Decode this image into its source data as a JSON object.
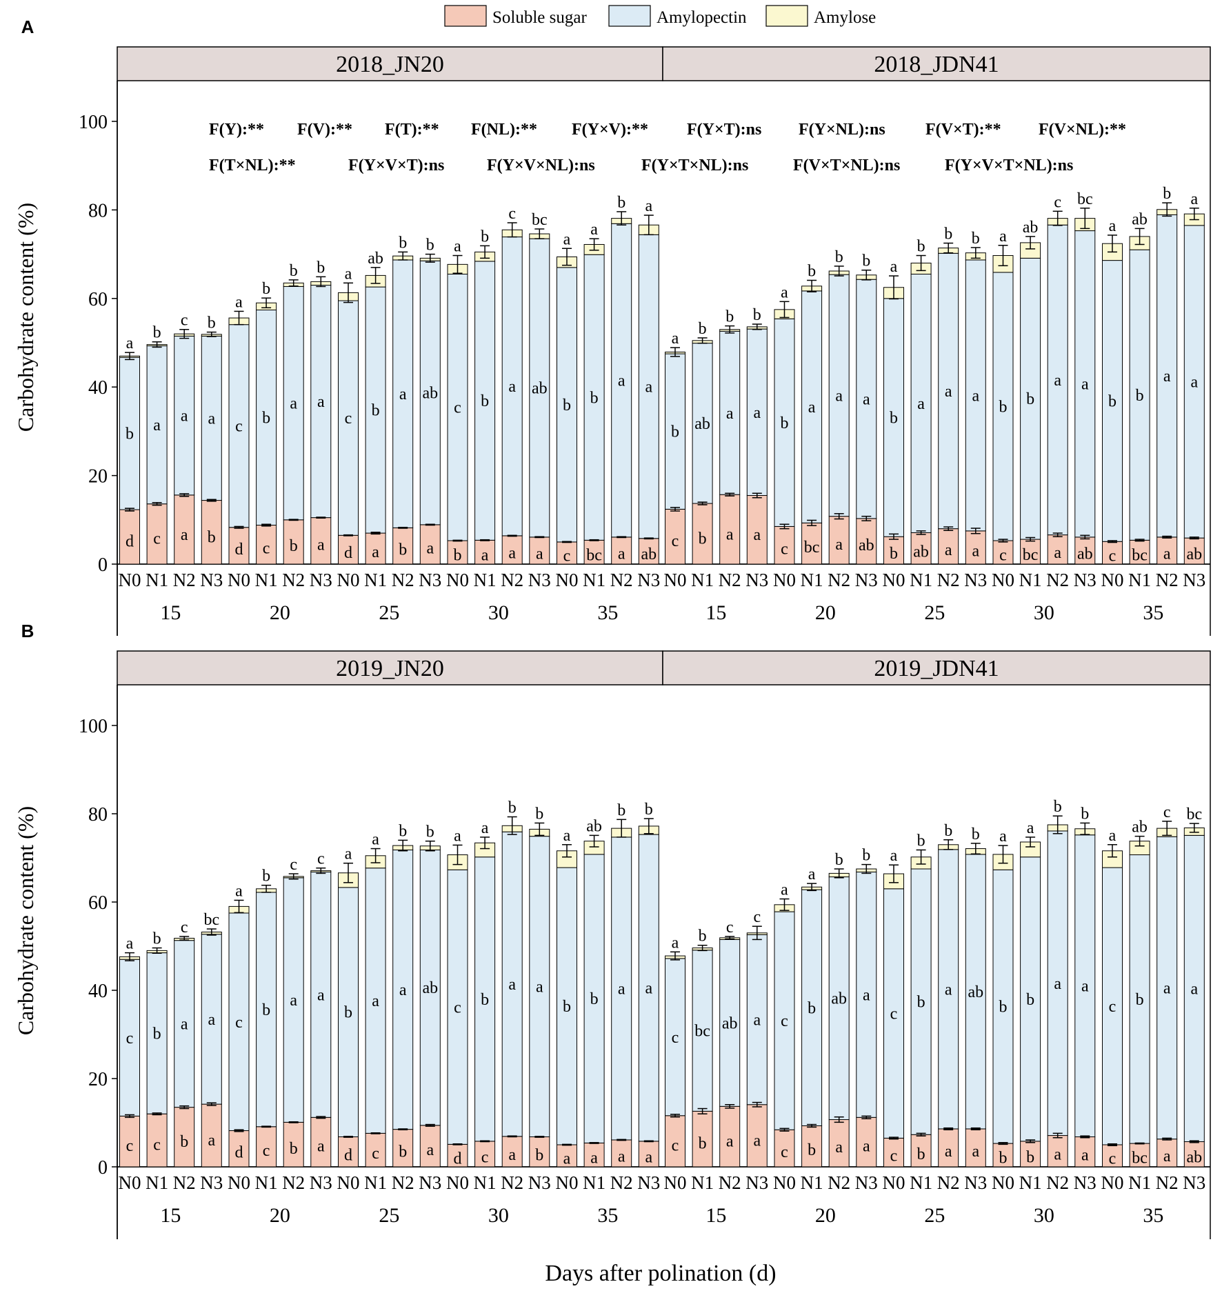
{
  "legend": [
    {
      "label": "Soluble sugar",
      "color": "#f5c9b8"
    },
    {
      "label": "Amylopectin",
      "color": "#dcebf5"
    },
    {
      "label": "Amylose",
      "color": "#fbf8d0"
    }
  ],
  "y_label": "Carbohydrate content (%)",
  "x_label": "Days after polination (d)",
  "anova_line1": [
    "F(Y):**",
    "F(V):**",
    "F(T):**",
    "F(NL):**",
    "F(Y×V):**",
    "F(Y×T):ns",
    "F(Y×NL):ns",
    "F(V×T):**",
    "F(V×NL):**"
  ],
  "anova_line2": [
    "F(T×NL):**",
    "F(Y×V×T):ns",
    "F(Y×V×NL):ns",
    "F(Y×T×NL):ns",
    "F(V×T×NL):ns",
    "F(Y×V×T×NL):ns"
  ],
  "chart_data": [
    {
      "type": "bar",
      "stacked": true,
      "panel_label": "A",
      "ylim": [
        0,
        110
      ],
      "yticks": [
        0,
        20,
        40,
        60,
        80,
        100
      ],
      "nitrogen_levels": [
        "N0",
        "N1",
        "N2",
        "N3"
      ],
      "days": [
        "15",
        "20",
        "25",
        "30",
        "35"
      ],
      "facets": [
        {
          "title": "2018_JN20",
          "sugar": [
            12.3,
            13.6,
            15.6,
            14.4,
            8.3,
            8.8,
            10.0,
            10.5,
            6.5,
            7.0,
            8.2,
            8.9,
            5.3,
            5.4,
            6.4,
            6.1,
            5.0,
            5.4,
            6.1,
            5.8
          ],
          "amylopectin": [
            34.4,
            35.7,
            35.9,
            37.1,
            45.8,
            48.6,
            52.7,
            52.5,
            53.0,
            55.6,
            60.5,
            59.6,
            60.2,
            63.0,
            67.5,
            67.4,
            62.0,
            64.5,
            70.8,
            68.6
          ],
          "amylose": [
            0.3,
            0.3,
            0.5,
            0.4,
            1.5,
            1.6,
            0.8,
            0.8,
            1.8,
            2.6,
            0.9,
            0.6,
            2.2,
            2.1,
            1.6,
            1.1,
            2.4,
            2.3,
            1.2,
            2.2
          ],
          "total_err": [
            0.8,
            0.6,
            1.0,
            0.5,
            1.5,
            1.1,
            0.7,
            1.1,
            2.2,
            1.8,
            0.9,
            0.9,
            2.0,
            1.4,
            1.6,
            1.1,
            1.9,
            1.3,
            1.5,
            2.2
          ],
          "sugar_err": [
            0.3,
            0.3,
            0.3,
            0.2,
            0.2,
            0.2,
            0.1,
            0.1,
            0.1,
            0.2,
            0.1,
            0.1,
            0.1,
            0.1,
            0.1,
            0.1,
            0.1,
            0.1,
            0.1,
            0.1
          ],
          "total_letters": [
            "a",
            "b",
            "c",
            "b",
            "a",
            "b",
            "b",
            "b",
            "a",
            "ab",
            "b",
            "b",
            "a",
            "b",
            "c",
            "bc",
            "a",
            "a",
            "b",
            "a"
          ],
          "amylopectin_letters": [
            "b",
            "a",
            "a",
            "a",
            "c",
            "b",
            "a",
            "a",
            "c",
            "b",
            "a",
            "ab",
            "c",
            "b",
            "a",
            "ab",
            "b",
            "b",
            "a",
            "a"
          ],
          "sugar_letters": [
            "d",
            "c",
            "a",
            "b",
            "d",
            "c",
            "b",
            "a",
            "d",
            "a",
            "b",
            "a",
            "b",
            "a",
            "a",
            "a",
            "c",
            "bc",
            "a",
            "ab"
          ]
        },
        {
          "title": "2018_JDN41",
          "sugar": [
            12.4,
            13.7,
            15.7,
            15.5,
            8.5,
            9.3,
            10.8,
            10.3,
            6.2,
            7.1,
            8.0,
            7.5,
            5.3,
            5.6,
            6.6,
            6.1,
            5.1,
            5.4,
            6.1,
            5.9
          ],
          "amylopectin": [
            35.1,
            36.2,
            36.9,
            37.6,
            46.9,
            52.4,
            54.6,
            54.0,
            53.8,
            58.4,
            62.2,
            61.2,
            60.6,
            63.5,
            70.0,
            69.2,
            63.5,
            65.6,
            72.8,
            70.6
          ],
          "amylose": [
            0.4,
            0.6,
            0.4,
            0.5,
            2.1,
            1.1,
            0.8,
            1.0,
            2.5,
            2.5,
            1.2,
            1.6,
            3.8,
            3.5,
            1.5,
            2.8,
            3.8,
            3.0,
            1.2,
            2.6
          ],
          "total_err": [
            1.0,
            0.6,
            0.8,
            0.6,
            1.8,
            1.3,
            1.1,
            1.1,
            2.6,
            1.7,
            1.1,
            1.2,
            2.3,
            1.4,
            1.6,
            2.3,
            1.9,
            1.8,
            1.5,
            1.3
          ],
          "sugar_err": [
            0.4,
            0.3,
            0.3,
            0.5,
            0.5,
            0.6,
            0.6,
            0.5,
            0.6,
            0.4,
            0.4,
            0.6,
            0.3,
            0.4,
            0.4,
            0.4,
            0.2,
            0.2,
            0.2,
            0.2
          ],
          "total_letters": [
            "a",
            "b",
            "b",
            "b",
            "a",
            "b",
            "b",
            "b",
            "a",
            "b",
            "b",
            "b",
            "a",
            "ab",
            "c",
            "bc",
            "a",
            "ab",
            "b",
            "a"
          ],
          "amylopectin_letters": [
            "b",
            "ab",
            "a",
            "a",
            "b",
            "a",
            "a",
            "a",
            "b",
            "a",
            "a",
            "a",
            "b",
            "b",
            "a",
            "a",
            "b",
            "b",
            "a",
            "a"
          ],
          "sugar_letters": [
            "c",
            "b",
            "a",
            "a",
            "c",
            "bc",
            "a",
            "ab",
            "b",
            "ab",
            "a",
            "a",
            "c",
            "bc",
            "a",
            "ab",
            "c",
            "bc",
            "a",
            "ab"
          ]
        }
      ]
    },
    {
      "type": "bar",
      "stacked": true,
      "panel_label": "B",
      "ylim": [
        0,
        110
      ],
      "yticks": [
        0,
        20,
        40,
        60,
        80,
        100
      ],
      "nitrogen_levels": [
        "N0",
        "N1",
        "N2",
        "N3"
      ],
      "days": [
        "15",
        "20",
        "25",
        "30",
        "35"
      ],
      "facets": [
        {
          "title": "2019_JN20",
          "sugar": [
            11.5,
            12.0,
            13.5,
            14.2,
            8.2,
            9.1,
            10.1,
            11.2,
            6.8,
            7.6,
            8.5,
            9.4,
            5.1,
            5.8,
            6.9,
            6.8,
            5.0,
            5.4,
            6.1,
            5.8
          ],
          "amylopectin": [
            35.5,
            36.5,
            37.8,
            38.5,
            49.3,
            53.1,
            55.4,
            55.6,
            56.5,
            60.1,
            63.3,
            62.4,
            62.2,
            64.4,
            69.0,
            68.1,
            62.8,
            65.4,
            68.6,
            69.5
          ],
          "amylose": [
            0.6,
            0.5,
            0.5,
            0.5,
            1.5,
            0.8,
            0.3,
            0.3,
            3.3,
            2.8,
            1.0,
            0.9,
            3.4,
            3.2,
            1.4,
            1.6,
            3.8,
            3.0,
            2.0,
            1.9
          ],
          "total_err": [
            0.9,
            0.6,
            0.4,
            0.7,
            1.4,
            0.8,
            0.6,
            0.6,
            2.2,
            1.6,
            1.2,
            1.1,
            2.2,
            1.3,
            2.0,
            1.4,
            1.4,
            1.3,
            2.0,
            1.7
          ],
          "sugar_err": [
            0.3,
            0.2,
            0.3,
            0.3,
            0.2,
            0.1,
            0.1,
            0.2,
            0.1,
            0.1,
            0.1,
            0.2,
            0.1,
            0.1,
            0.1,
            0.1,
            0.1,
            0.1,
            0.1,
            0.1
          ],
          "total_letters": [
            "a",
            "b",
            "c",
            "bc",
            "a",
            "b",
            "c",
            "c",
            "a",
            "a",
            "b",
            "b",
            "a",
            "a",
            "b",
            "b",
            "a",
            "ab",
            "b",
            "b"
          ],
          "amylopectin_letters": [
            "c",
            "b",
            "a",
            "a",
            "c",
            "b",
            "a",
            "a",
            "b",
            "a",
            "a",
            "ab",
            "c",
            "b",
            "a",
            "a",
            "b",
            "b",
            "a",
            "a"
          ],
          "sugar_letters": [
            "c",
            "c",
            "b",
            "a",
            "d",
            "c",
            "b",
            "a",
            "d",
            "c",
            "b",
            "a",
            "d",
            "c",
            "a",
            "b",
            "a",
            "a",
            "a",
            "a"
          ]
        },
        {
          "title": "2019_JDN41",
          "sugar": [
            11.6,
            12.6,
            13.7,
            14.1,
            8.4,
            9.3,
            10.7,
            11.2,
            6.5,
            7.3,
            8.6,
            8.6,
            5.3,
            5.8,
            7.1,
            6.8,
            5.0,
            5.3,
            6.3,
            5.7
          ],
          "amylopectin": [
            35.6,
            36.5,
            37.8,
            38.5,
            49.4,
            53.5,
            55.0,
            55.6,
            56.5,
            60.2,
            63.3,
            62.2,
            62.0,
            64.4,
            69.0,
            68.4,
            62.8,
            65.4,
            68.5,
            69.4
          ],
          "amylose": [
            0.6,
            0.5,
            0.4,
            0.4,
            1.6,
            0.6,
            0.8,
            0.7,
            3.4,
            2.7,
            1.1,
            1.3,
            3.5,
            3.4,
            1.4,
            1.4,
            3.8,
            3.1,
            1.9,
            1.7
          ],
          "total_err": [
            0.9,
            0.6,
            0.3,
            1.5,
            1.3,
            0.8,
            1.0,
            1.0,
            2.0,
            1.6,
            1.1,
            1.2,
            2.0,
            1.1,
            2.0,
            1.3,
            1.4,
            1.1,
            1.6,
            1.0
          ],
          "sugar_err": [
            0.3,
            0.6,
            0.4,
            0.5,
            0.3,
            0.3,
            0.6,
            0.3,
            0.2,
            0.3,
            0.2,
            0.2,
            0.2,
            0.3,
            0.5,
            0.2,
            0.2,
            0.1,
            0.2,
            0.2
          ],
          "total_letters": [
            "a",
            "b",
            "c",
            "c",
            "a",
            "a",
            "b",
            "b",
            "a",
            "b",
            "b",
            "b",
            "a",
            "a",
            "b",
            "b",
            "a",
            "ab",
            "c",
            "bc"
          ],
          "amylopectin_letters": [
            "c",
            "bc",
            "ab",
            "a",
            "c",
            "b",
            "ab",
            "a",
            "c",
            "b",
            "a",
            "ab",
            "b",
            "b",
            "a",
            "a",
            "c",
            "b",
            "a",
            "a"
          ],
          "sugar_letters": [
            "c",
            "b",
            "a",
            "a",
            "c",
            "b",
            "a",
            "a",
            "c",
            "b",
            "a",
            "a",
            "b",
            "b",
            "a",
            "a",
            "c",
            "bc",
            "a",
            "ab"
          ]
        }
      ]
    }
  ]
}
